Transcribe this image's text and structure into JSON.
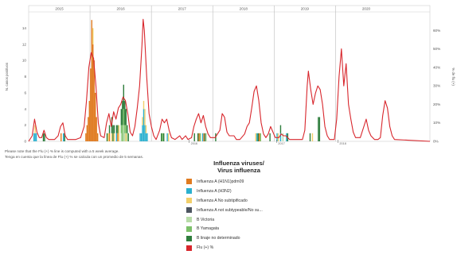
{
  "notes": {
    "en": "Please note that the Flu (+) % line is computed with a 5 week average.",
    "es": "Tenga en cuenta que la línea de Flu (+) % se calcula con un promedio de 5 semanas."
  },
  "legend_title": {
    "en": "Influenza viruses/",
    "es": "Virus influenza"
  },
  "chart_data": {
    "type": "bar",
    "stacked": true,
    "xlabel": "",
    "ylabel_left": "N. casos positivos",
    "ylabel_right": "% de flu (+)",
    "x_weeks_total": 340,
    "year_labels": [
      "2015",
      "2016",
      "2017",
      "2018",
      "2019",
      "2020"
    ],
    "year_start_weeks": [
      0,
      52,
      104,
      156,
      208,
      260,
      312
    ],
    "ylim_left": [
      0,
      16
    ],
    "yticks_left": [
      0,
      2,
      4,
      6,
      8,
      10,
      12,
      14
    ],
    "ylim_right": [
      0,
      70
    ],
    "yticks_right": [
      "0%",
      "10%",
      "20%",
      "30%",
      "40%",
      "50%",
      "60%"
    ],
    "x_markers": [
      {
        "week": 136,
        "label": "2016"
      },
      {
        "week": 210,
        "label": "2017"
      },
      {
        "week": 262,
        "label": "2018"
      }
    ],
    "series": [
      {
        "name": "Influenza A (H1N1)pdm09",
        "color": "#e07b20"
      },
      {
        "name": "Influenza A (H3N2)",
        "color": "#2ab0cf"
      },
      {
        "name": "Influenza A No subtipificado",
        "color": "#f2cf6a"
      },
      {
        "name": "Influenza A not subtypeable/No su...",
        "color": "#4d5560"
      },
      {
        "name": "B Victoria",
        "color": "#b8dca8"
      },
      {
        "name": "B Yamagata",
        "color": "#7cc06a"
      },
      {
        "name": "B linaje no determinado",
        "color": "#2e7d3c"
      },
      {
        "name": "Flu (+) %",
        "color": "#d8262c"
      }
    ],
    "bars": [
      {
        "w": 4,
        "v": [
          0,
          1,
          0,
          0,
          0,
          0,
          0
        ]
      },
      {
        "w": 5,
        "v": [
          0,
          1,
          1,
          0,
          0,
          0,
          0
        ]
      },
      {
        "w": 6,
        "v": [
          0,
          1,
          0,
          0,
          0,
          0,
          0
        ]
      },
      {
        "w": 12,
        "v": [
          0,
          0,
          0,
          0,
          0,
          0,
          1
        ]
      },
      {
        "w": 13,
        "v": [
          0,
          0,
          0,
          0,
          0,
          0,
          1
        ]
      },
      {
        "w": 27,
        "v": [
          1,
          0,
          0,
          0,
          0,
          0,
          0
        ]
      },
      {
        "w": 29,
        "v": [
          0,
          1,
          0,
          0,
          0,
          0,
          0
        ]
      },
      {
        "w": 30,
        "v": [
          0,
          0,
          0,
          0,
          0,
          0,
          1
        ]
      },
      {
        "w": 48,
        "v": [
          1,
          0,
          0,
          0,
          0,
          0,
          0
        ]
      },
      {
        "w": 49,
        "v": [
          2,
          0,
          0,
          0,
          0,
          0,
          0
        ]
      },
      {
        "w": 50,
        "v": [
          3,
          0,
          0,
          0,
          0,
          0,
          0
        ]
      },
      {
        "w": 51,
        "v": [
          5,
          0,
          0,
          0,
          0,
          0,
          0
        ]
      },
      {
        "w": 52,
        "v": [
          9,
          0,
          0,
          0,
          0,
          0,
          0
        ]
      },
      {
        "w": 53,
        "v": [
          15,
          0,
          0,
          0,
          0,
          0,
          0
        ]
      },
      {
        "w": 54,
        "v": [
          12,
          0,
          2,
          0,
          0,
          0,
          0
        ]
      },
      {
        "w": 55,
        "v": [
          10,
          0,
          0,
          0,
          0,
          0,
          0
        ]
      },
      {
        "w": 56,
        "v": [
          6,
          0,
          0,
          0,
          0,
          0,
          0
        ]
      },
      {
        "w": 57,
        "v": [
          3,
          0,
          0,
          0,
          0,
          0,
          0
        ]
      },
      {
        "w": 58,
        "v": [
          1,
          0,
          0,
          0,
          0,
          0,
          0
        ]
      },
      {
        "w": 66,
        "v": [
          0,
          0,
          0,
          0,
          0,
          0,
          1
        ]
      },
      {
        "w": 67,
        "v": [
          0,
          0,
          1,
          0,
          0,
          0,
          0
        ]
      },
      {
        "w": 68,
        "v": [
          1,
          0,
          0,
          0,
          0,
          0,
          1
        ]
      },
      {
        "w": 70,
        "v": [
          0,
          0,
          1,
          0,
          0,
          0,
          2
        ]
      },
      {
        "w": 71,
        "v": [
          0,
          0,
          0,
          0,
          0,
          0,
          2
        ]
      },
      {
        "w": 72,
        "v": [
          0,
          0,
          1,
          0,
          0,
          0,
          1
        ]
      },
      {
        "w": 74,
        "v": [
          0,
          1,
          0,
          0,
          0,
          0,
          1
        ]
      },
      {
        "w": 75,
        "v": [
          1,
          0,
          0,
          0,
          0,
          0,
          1
        ]
      },
      {
        "w": 76,
        "v": [
          0,
          0,
          2,
          0,
          0,
          0,
          0
        ]
      },
      {
        "w": 78,
        "v": [
          0,
          0,
          0,
          0,
          1,
          1,
          2
        ]
      },
      {
        "w": 79,
        "v": [
          0,
          0,
          0,
          0,
          0,
          2,
          3
        ]
      },
      {
        "w": 80,
        "v": [
          0,
          0,
          0,
          0,
          2,
          2,
          3
        ]
      },
      {
        "w": 81,
        "v": [
          0,
          0,
          0,
          0,
          1,
          1,
          3
        ]
      },
      {
        "w": 82,
        "v": [
          0,
          0,
          1,
          0,
          0,
          1,
          2
        ]
      },
      {
        "w": 83,
        "v": [
          0,
          0,
          0,
          0,
          1,
          0,
          1
        ]
      },
      {
        "w": 84,
        "v": [
          0,
          0,
          0,
          0,
          0,
          0,
          1
        ]
      },
      {
        "w": 94,
        "v": [
          0,
          1,
          0,
          0,
          0,
          0,
          0
        ]
      },
      {
        "w": 95,
        "v": [
          0,
          1,
          0,
          0,
          0,
          0,
          0
        ]
      },
      {
        "w": 96,
        "v": [
          0,
          2,
          1,
          0,
          0,
          0,
          0
        ]
      },
      {
        "w": 97,
        "v": [
          0,
          4,
          1,
          0,
          0,
          0,
          0
        ]
      },
      {
        "w": 98,
        "v": [
          0,
          2,
          2,
          0,
          0,
          0,
          0
        ]
      },
      {
        "w": 99,
        "v": [
          0,
          1,
          1,
          0,
          0,
          0,
          0
        ]
      },
      {
        "w": 100,
        "v": [
          0,
          1,
          0,
          0,
          0,
          0,
          0
        ]
      },
      {
        "w": 112,
        "v": [
          0,
          0,
          0,
          0,
          0,
          0,
          1
        ]
      },
      {
        "w": 113,
        "v": [
          0,
          0,
          0,
          0,
          0,
          1,
          0
        ]
      },
      {
        "w": 114,
        "v": [
          0,
          0,
          0,
          0,
          0,
          0,
          1
        ]
      },
      {
        "w": 117,
        "v": [
          0,
          1,
          0,
          0,
          0,
          0,
          0
        ]
      },
      {
        "w": 118,
        "v": [
          0,
          0,
          1,
          0,
          0,
          0,
          0
        ]
      },
      {
        "w": 140,
        "v": [
          0,
          0,
          0,
          0,
          0,
          0,
          1
        ]
      },
      {
        "w": 143,
        "v": [
          0,
          0,
          0,
          0,
          0,
          0,
          1
        ]
      },
      {
        "w": 144,
        "v": [
          1,
          0,
          0,
          0,
          0,
          0,
          0
        ]
      },
      {
        "w": 145,
        "v": [
          0,
          0,
          0,
          0,
          0,
          1,
          0
        ]
      },
      {
        "w": 147,
        "v": [
          0,
          1,
          0,
          0,
          0,
          0,
          0
        ]
      },
      {
        "w": 148,
        "v": [
          1,
          0,
          0,
          0,
          0,
          0,
          0
        ]
      },
      {
        "w": 149,
        "v": [
          0,
          0,
          0,
          0,
          0,
          0,
          1
        ]
      },
      {
        "w": 150,
        "v": [
          0,
          0,
          0,
          0,
          1,
          0,
          0
        ]
      },
      {
        "w": 158,
        "v": [
          0,
          0,
          0,
          0,
          0,
          0,
          1
        ]
      },
      {
        "w": 192,
        "v": [
          0,
          0,
          1,
          0,
          0,
          0,
          0
        ]
      },
      {
        "w": 193,
        "v": [
          0,
          1,
          0,
          0,
          0,
          0,
          0
        ]
      },
      {
        "w": 194,
        "v": [
          0,
          0,
          0,
          0,
          0,
          0,
          1
        ]
      },
      {
        "w": 195,
        "v": [
          1,
          0,
          0,
          0,
          0,
          0,
          0
        ]
      },
      {
        "w": 196,
        "v": [
          0,
          0,
          0,
          0,
          0,
          1,
          0
        ]
      },
      {
        "w": 204,
        "v": [
          0,
          0,
          0,
          0,
          0,
          0,
          1
        ]
      },
      {
        "w": 210,
        "v": [
          0,
          1,
          0,
          0,
          0,
          0,
          0
        ]
      },
      {
        "w": 211,
        "v": [
          0,
          0,
          1,
          0,
          0,
          0,
          0
        ]
      },
      {
        "w": 213,
        "v": [
          0,
          1,
          0,
          0,
          0,
          0,
          1
        ]
      },
      {
        "w": 215,
        "v": [
          0,
          0,
          0,
          0,
          1,
          0,
          0
        ]
      },
      {
        "w": 218,
        "v": [
          0,
          1,
          0,
          0,
          0,
          0,
          0
        ]
      },
      {
        "w": 219,
        "v": [
          0,
          0,
          0,
          0,
          0,
          0,
          1
        ]
      },
      {
        "w": 238,
        "v": [
          0,
          0,
          0,
          0,
          0,
          0,
          1
        ]
      },
      {
        "w": 240,
        "v": [
          0,
          0,
          1,
          0,
          0,
          0,
          0
        ]
      },
      {
        "w": 245,
        "v": [
          0,
          0,
          0,
          0,
          0,
          0,
          3
        ]
      },
      {
        "w": 246,
        "v": [
          0,
          0,
          0,
          0,
          0,
          0,
          3
        ]
      }
    ],
    "flu_positive_pct": [
      [
        0,
        0
      ],
      [
        3,
        3
      ],
      [
        5,
        12
      ],
      [
        7,
        5
      ],
      [
        9,
        2
      ],
      [
        11,
        2
      ],
      [
        13,
        6
      ],
      [
        15,
        2
      ],
      [
        17,
        1
      ],
      [
        22,
        1
      ],
      [
        25,
        3
      ],
      [
        27,
        8
      ],
      [
        29,
        10
      ],
      [
        31,
        3
      ],
      [
        33,
        1
      ],
      [
        40,
        1
      ],
      [
        44,
        2
      ],
      [
        47,
        8
      ],
      [
        49,
        22
      ],
      [
        51,
        40
      ],
      [
        53,
        48
      ],
      [
        55,
        45
      ],
      [
        57,
        30
      ],
      [
        59,
        10
      ],
      [
        61,
        3
      ],
      [
        64,
        2
      ],
      [
        66,
        10
      ],
      [
        68,
        15
      ],
      [
        70,
        8
      ],
      [
        72,
        16
      ],
      [
        74,
        12
      ],
      [
        76,
        18
      ],
      [
        78,
        20
      ],
      [
        80,
        24
      ],
      [
        82,
        22
      ],
      [
        84,
        15
      ],
      [
        86,
        5
      ],
      [
        88,
        3
      ],
      [
        90,
        8
      ],
      [
        92,
        18
      ],
      [
        94,
        30
      ],
      [
        96,
        52
      ],
      [
        97,
        66
      ],
      [
        98,
        60
      ],
      [
        100,
        35
      ],
      [
        102,
        15
      ],
      [
        104,
        8
      ],
      [
        106,
        3
      ],
      [
        108,
        1
      ],
      [
        111,
        6
      ],
      [
        113,
        12
      ],
      [
        115,
        10
      ],
      [
        117,
        12
      ],
      [
        119,
        6
      ],
      [
        121,
        2
      ],
      [
        124,
        1
      ],
      [
        128,
        3
      ],
      [
        130,
        1
      ],
      [
        133,
        3
      ],
      [
        135,
        1
      ],
      [
        138,
        2
      ],
      [
        140,
        8
      ],
      [
        142,
        12
      ],
      [
        144,
        15
      ],
      [
        146,
        10
      ],
      [
        148,
        14
      ],
      [
        150,
        8
      ],
      [
        152,
        4
      ],
      [
        154,
        2
      ],
      [
        158,
        2
      ],
      [
        162,
        6
      ],
      [
        164,
        15
      ],
      [
        166,
        13
      ],
      [
        168,
        5
      ],
      [
        170,
        3
      ],
      [
        174,
        3
      ],
      [
        176,
        1
      ],
      [
        179,
        1
      ],
      [
        183,
        4
      ],
      [
        185,
        8
      ],
      [
        187,
        10
      ],
      [
        189,
        18
      ],
      [
        191,
        27
      ],
      [
        193,
        30
      ],
      [
        195,
        22
      ],
      [
        197,
        10
      ],
      [
        199,
        4
      ],
      [
        201,
        2
      ],
      [
        203,
        4
      ],
      [
        205,
        8
      ],
      [
        207,
        5
      ],
      [
        209,
        2
      ],
      [
        212,
        2
      ],
      [
        214,
        4
      ],
      [
        216,
        3
      ],
      [
        218,
        3
      ],
      [
        221,
        1
      ],
      [
        229,
        1
      ],
      [
        232,
        1
      ],
      [
        234,
        6
      ],
      [
        236,
        30
      ],
      [
        237,
        38
      ],
      [
        239,
        28
      ],
      [
        241,
        20
      ],
      [
        243,
        26
      ],
      [
        245,
        30
      ],
      [
        247,
        28
      ],
      [
        249,
        20
      ],
      [
        251,
        8
      ],
      [
        253,
        3
      ],
      [
        255,
        1
      ],
      [
        259,
        1
      ],
      [
        261,
        12
      ],
      [
        263,
        35
      ],
      [
        265,
        50
      ],
      [
        267,
        30
      ],
      [
        269,
        42
      ],
      [
        271,
        20
      ],
      [
        273,
        12
      ],
      [
        275,
        5
      ],
      [
        277,
        2
      ],
      [
        281,
        2
      ],
      [
        284,
        8
      ],
      [
        286,
        12
      ],
      [
        288,
        6
      ],
      [
        290,
        3
      ],
      [
        293,
        1
      ],
      [
        296,
        1
      ],
      [
        298,
        2
      ],
      [
        300,
        14
      ],
      [
        302,
        22
      ],
      [
        304,
        18
      ],
      [
        306,
        8
      ],
      [
        308,
        3
      ],
      [
        310,
        1
      ],
      [
        340,
        0
      ]
    ]
  }
}
